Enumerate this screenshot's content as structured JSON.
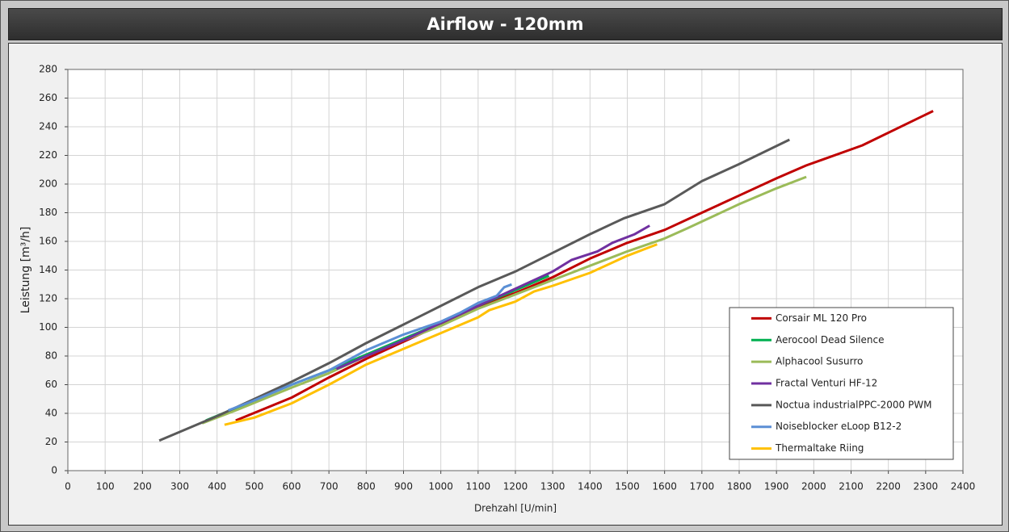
{
  "chart_data": {
    "type": "line",
    "title": "Airflow - 120mm",
    "x_label": "Drehzahl [U/min]",
    "y_label": "Leistung [m³/h]",
    "xlim": [
      0,
      2400
    ],
    "xticks": [
      0,
      100,
      200,
      300,
      400,
      500,
      600,
      700,
      800,
      900,
      1000,
      1100,
      1200,
      1300,
      1400,
      1500,
      1600,
      1700,
      1800,
      1900,
      2000,
      2100,
      2200,
      2300,
      2400
    ],
    "ylim": [
      0,
      280
    ],
    "yticks": [
      0,
      20,
      40,
      60,
      80,
      100,
      120,
      140,
      160,
      180,
      200,
      220,
      240,
      260,
      280
    ],
    "grid": true,
    "legend": "lower-right",
    "series": [
      {
        "name": "Corsair ML 120 Pro",
        "color": "#c00000",
        "x": [
          450,
          600,
          700,
          800,
          900,
          1000,
          1100,
          1200,
          1300,
          1400,
          1500,
          1600,
          1700,
          1800,
          1900,
          1980,
          2130,
          2320
        ],
        "values": [
          35,
          51,
          65,
          78,
          90,
          102,
          114,
          124,
          135,
          148,
          159,
          168,
          180,
          192,
          204,
          213,
          227,
          251
        ]
      },
      {
        "name": "Aerocool Dead Silence",
        "color": "#00b050",
        "x": [
          370,
          500,
          600,
          700,
          800,
          900,
          1000,
          1100,
          1200,
          1290
        ],
        "values": [
          35,
          49,
          60,
          70,
          81,
          92,
          103,
          115,
          126,
          136
        ]
      },
      {
        "name": "Alphacool Susurro",
        "color": "#9bbb59",
        "x": [
          360,
          450,
          600,
          700,
          800,
          900,
          1000,
          1100,
          1200,
          1300,
          1400,
          1500,
          1600,
          1660,
          1800,
          1900,
          1980
        ],
        "values": [
          33,
          42,
          58,
          68,
          80,
          91,
          101,
          113,
          123,
          133,
          143,
          153,
          162,
          169,
          186,
          197,
          205
        ]
      },
      {
        "name": "Fractal Venturi HF-12",
        "color": "#7030a0",
        "x": [
          720,
          800,
          900,
          1000,
          1100,
          1200,
          1300,
          1350,
          1420,
          1460,
          1520,
          1560
        ],
        "values": [
          71,
          80,
          91,
          103,
          115,
          127,
          139,
          147,
          153,
          159,
          165,
          171
        ]
      },
      {
        "name": "Noctua industrialPPC-2000 PWM",
        "color": "#595959",
        "x": [
          245,
          400,
          500,
          600,
          700,
          800,
          900,
          1000,
          1100,
          1200,
          1300,
          1400,
          1490,
          1600,
          1700,
          1800,
          1935
        ],
        "values": [
          21,
          38,
          50,
          62,
          75,
          89,
          102,
          115,
          128,
          139,
          152,
          165,
          176,
          186,
          202,
          214,
          231
        ]
      },
      {
        "name": "Noiseblocker eLoop B12-2",
        "color": "#5b8fd5",
        "x": [
          430,
          500,
          600,
          700,
          800,
          900,
          1000,
          1050,
          1100,
          1150,
          1170,
          1190
        ],
        "values": [
          42,
          49,
          60,
          70,
          84,
          95,
          104,
          110,
          117,
          122,
          128,
          130
        ]
      },
      {
        "name": "Thermaltake Riing",
        "color": "#ffc000",
        "x": [
          420,
          500,
          600,
          700,
          750,
          800,
          900,
          1000,
          1100,
          1130,
          1200,
          1250,
          1300,
          1400,
          1500,
          1580
        ],
        "values": [
          32,
          37,
          47,
          60,
          67,
          74,
          85,
          96,
          107,
          112,
          118,
          125,
          129,
          138,
          150,
          158
        ]
      }
    ]
  }
}
